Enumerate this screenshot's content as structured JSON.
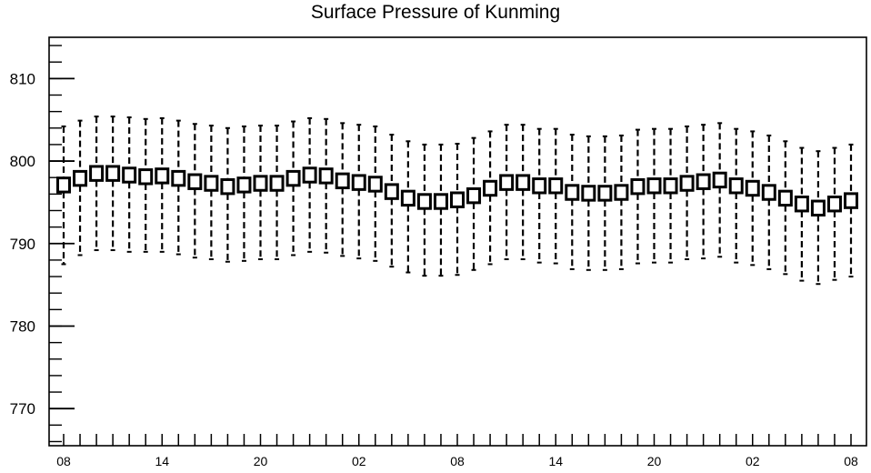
{
  "chart_data": {
    "type": "box",
    "title": "Surface Pressure of Kunming",
    "xlabel": "",
    "ylabel": "",
    "ylim": [
      765.5,
      815
    ],
    "y_major_ticks": [
      770,
      780,
      790,
      800,
      810
    ],
    "y_minor_step": 2,
    "x_tick_labels": [
      "08",
      "14",
      "20",
      "02",
      "08",
      "14",
      "20",
      "02",
      "08"
    ],
    "x_label_every": 6,
    "grid": false,
    "legend": "none",
    "series": [
      {
        "box_mid": [
          797.1,
          797.9,
          798.5,
          798.5,
          798.3,
          798.1,
          798.2,
          797.9,
          797.5,
          797.3,
          796.9,
          797.1,
          797.3,
          797.3,
          797.9,
          798.3,
          798.2,
          797.6,
          797.4,
          797.2,
          796.3,
          795.5,
          795.1,
          795.1,
          795.3,
          795.8,
          796.7,
          797.4,
          797.4,
          797.0,
          797.0,
          796.2,
          796.1,
          796.1,
          796.2,
          796.9,
          797.0,
          797.0,
          797.3,
          797.5,
          797.7,
          797.0,
          796.7,
          796.2,
          795.5,
          794.8,
          794.3,
          794.8,
          795.2
        ],
        "box_half": [
          0.85,
          0.85,
          0.85,
          0.85,
          0.85,
          0.85,
          0.85,
          0.85,
          0.85,
          0.85,
          0.85,
          0.85,
          0.85,
          0.85,
          0.85,
          0.85,
          0.85,
          0.85,
          0.85,
          0.85,
          0.85,
          0.85,
          0.85,
          0.85,
          0.85,
          0.85,
          0.85,
          0.85,
          0.85,
          0.85,
          0.85,
          0.85,
          0.85,
          0.85,
          0.85,
          0.85,
          0.85,
          0.85,
          0.85,
          0.85,
          0.85,
          0.85,
          0.85,
          0.85,
          0.85,
          0.85,
          0.85,
          0.85,
          0.85
        ],
        "whisker_high": [
          804.2,
          804.9,
          805.4,
          805.4,
          805.3,
          805.1,
          805.2,
          804.9,
          804.5,
          804.3,
          804.0,
          804.2,
          804.3,
          804.3,
          804.8,
          805.2,
          805.1,
          804.6,
          804.4,
          804.2,
          803.2,
          802.4,
          802.0,
          802.0,
          802.1,
          802.8,
          803.6,
          804.4,
          804.4,
          803.9,
          803.9,
          803.2,
          803.0,
          803.0,
          803.1,
          803.8,
          803.9,
          803.9,
          804.2,
          804.4,
          804.6,
          803.9,
          803.6,
          803.1,
          802.4,
          801.6,
          801.2,
          801.6,
          802.0
        ],
        "whisker_low": [
          787.5,
          788.6,
          789.2,
          789.2,
          789.0,
          789.0,
          789.0,
          788.7,
          788.3,
          788.1,
          787.8,
          787.9,
          788.1,
          788.1,
          788.6,
          789.0,
          788.9,
          788.5,
          788.2,
          787.9,
          787.2,
          786.5,
          786.1,
          786.1,
          786.2,
          786.8,
          787.5,
          788.1,
          788.1,
          787.7,
          787.6,
          786.9,
          786.8,
          786.8,
          786.9,
          787.6,
          787.7,
          787.7,
          788.1,
          788.2,
          788.4,
          787.7,
          787.4,
          786.9,
          786.3,
          785.5,
          785.1,
          785.6,
          786.0
        ]
      }
    ]
  }
}
